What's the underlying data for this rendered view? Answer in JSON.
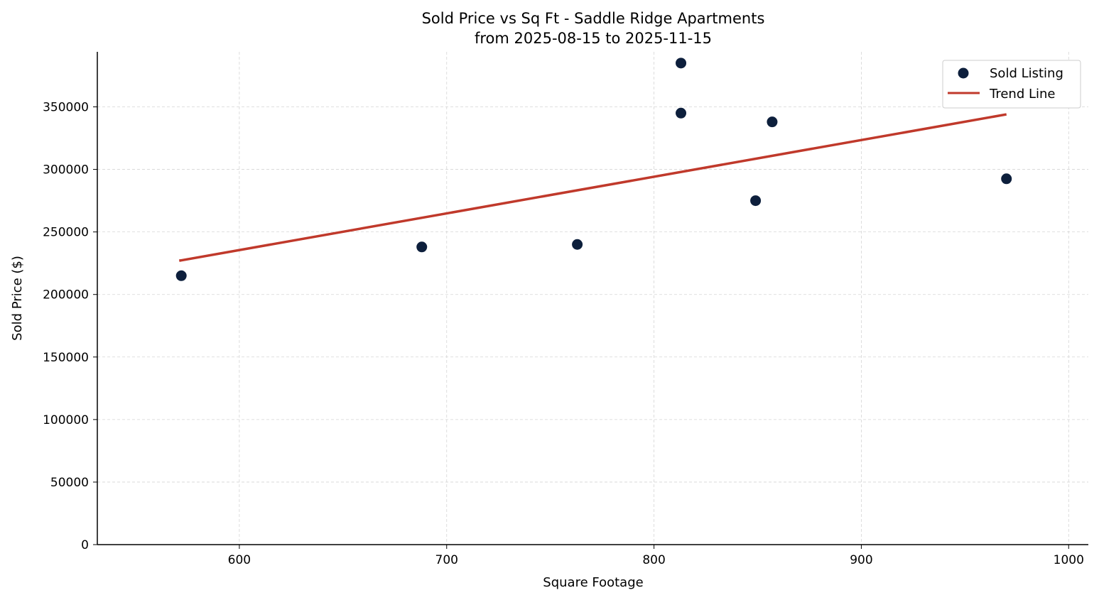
{
  "chart_data": {
    "type": "scatter",
    "title": "Sold Price vs Sq Ft - Saddle Ridge Apartments",
    "subtitle": "from 2025-08-15 to 2025-11-15",
    "xlabel": "Square Footage",
    "ylabel": "Sold Price ($)",
    "xlim": [
      531.5,
      1009.5
    ],
    "ylim": [
      0,
      394000
    ],
    "xticks": [
      600,
      700,
      800,
      900,
      1000
    ],
    "yticks": [
      0,
      50000,
      100000,
      150000,
      200000,
      250000,
      300000,
      350000
    ],
    "grid": true,
    "legend_position": "top-right",
    "series": [
      {
        "name": "Sold Listing",
        "kind": "scatter",
        "color": "#0d1f3c",
        "points": [
          {
            "x": 572,
            "y": 215000
          },
          {
            "x": 688,
            "y": 238000
          },
          {
            "x": 763,
            "y": 240000
          },
          {
            "x": 813,
            "y": 385000
          },
          {
            "x": 813,
            "y": 345000
          },
          {
            "x": 857,
            "y": 338000
          },
          {
            "x": 849,
            "y": 275000
          },
          {
            "x": 970,
            "y": 292500
          }
        ]
      },
      {
        "name": "Trend Line",
        "kind": "line",
        "color": "#c0392b",
        "points": [
          {
            "x": 571,
            "y": 227000
          },
          {
            "x": 970,
            "y": 344000
          }
        ]
      }
    ]
  }
}
